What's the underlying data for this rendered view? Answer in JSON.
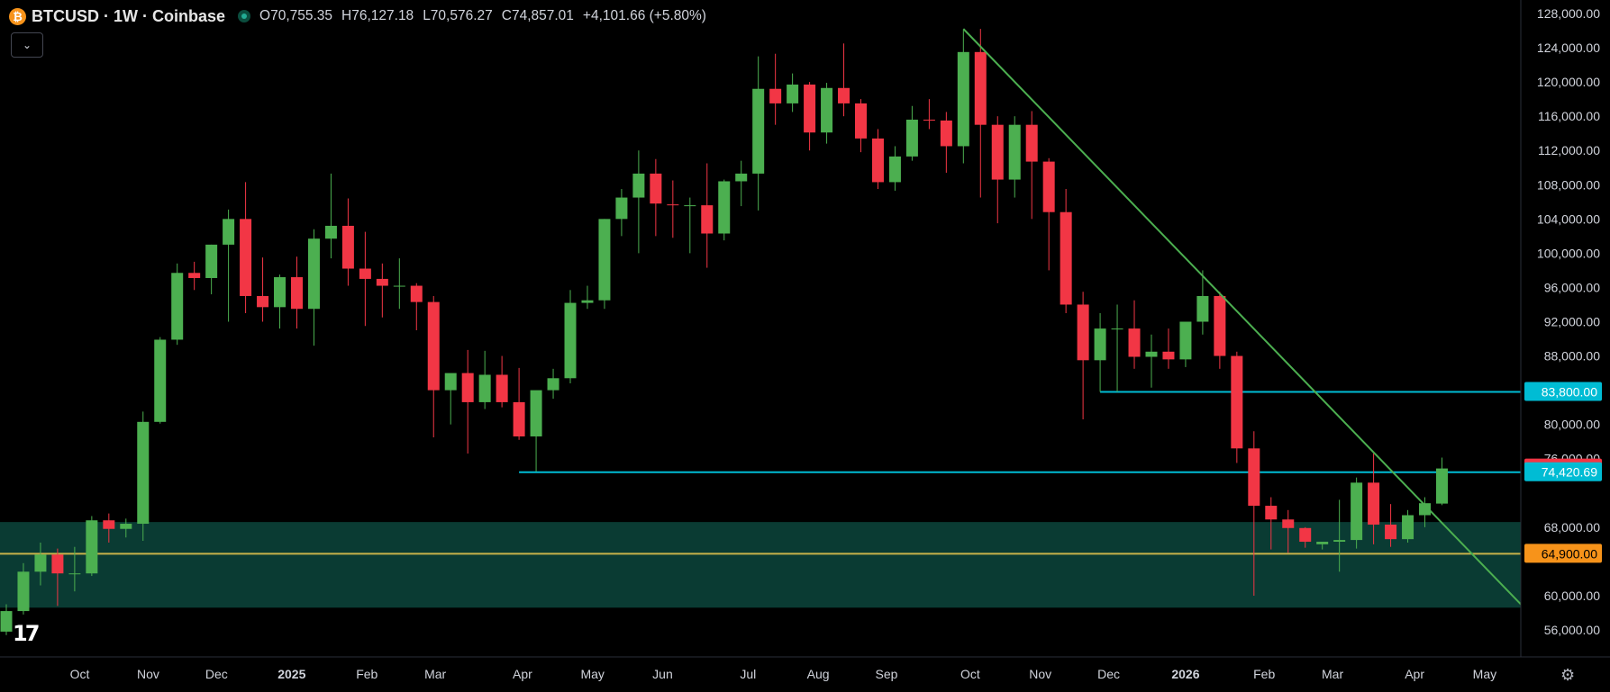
{
  "header": {
    "logo_glyph": "₿",
    "title": "BTCUSD · 1W · Coinbase",
    "open": "O70,755.35",
    "high": "H76,127.18",
    "low": "L70,576.27",
    "close": "C74,857.01",
    "change": "+4,101.66 (+5.80%)",
    "collapse_icon": "chevron-down-icon"
  },
  "colors": {
    "up": "#4caf50",
    "down": "#f23645",
    "cyan_line": "#00bcd4",
    "gold_line": "#c9b24a",
    "zone": "#0a3b33",
    "trendline": "#4caf50",
    "background": "#000000"
  },
  "chart_data": {
    "type": "candlestick",
    "symbol": "BTCUSD",
    "interval": "1W",
    "exchange": "Coinbase",
    "ylim": [
      53000,
      129000
    ],
    "y_ticks": [
      56000,
      60000,
      64000,
      68000,
      72000,
      76000,
      80000,
      84000,
      88000,
      92000,
      96000,
      100000,
      104000,
      108000,
      112000,
      116000,
      120000,
      124000,
      128000
    ],
    "y_tick_labels": [
      "56,000.00",
      "60,000.00",
      "",
      "68,000.00",
      "",
      "76,000.00",
      "80,000.00",
      "",
      "88,000.00",
      "92,000.00",
      "96,000.00",
      "100,000.00",
      "104,000.00",
      "108,000.00",
      "112,000.00",
      "116,000.00",
      "120,000.00",
      "124,000.00",
      "128,000.00"
    ],
    "x_labels": [
      {
        "label": "Oct",
        "index": 4.3
      },
      {
        "label": "Nov",
        "index": 8.3
      },
      {
        "label": "Dec",
        "index": 12.3
      },
      {
        "label": "2025",
        "index": 16.7
      },
      {
        "label": "Feb",
        "index": 21.1
      },
      {
        "label": "Mar",
        "index": 25.1
      },
      {
        "label": "Apr",
        "index": 30.2
      },
      {
        "label": "May",
        "index": 34.3
      },
      {
        "label": "Jun",
        "index": 38.4
      },
      {
        "label": "Jul",
        "index": 43.4
      },
      {
        "label": "Aug",
        "index": 47.5
      },
      {
        "label": "Sep",
        "index": 51.5
      },
      {
        "label": "Oct",
        "index": 56.4
      },
      {
        "label": "Nov",
        "index": 60.5
      },
      {
        "label": "Dec",
        "index": 64.5
      },
      {
        "label": "2026",
        "index": 69.0
      },
      {
        "label": "Feb",
        "index": 73.6
      },
      {
        "label": "Mar",
        "index": 77.6
      },
      {
        "label": "Apr",
        "index": 82.4
      },
      {
        "label": "May",
        "index": 86.5
      }
    ],
    "candles": [
      [
        55800,
        59000,
        55400,
        58200
      ],
      [
        58200,
        63800,
        57800,
        62800
      ],
      [
        62800,
        66200,
        61200,
        64800
      ],
      [
        64800,
        65500,
        58800,
        62600
      ],
      [
        62600,
        65700,
        60500,
        62600
      ],
      [
        62600,
        69300,
        62300,
        68800
      ],
      [
        68800,
        69600,
        66200,
        67800
      ],
      [
        67800,
        69000,
        66800,
        68400
      ],
      [
        68400,
        81500,
        66400,
        80300
      ],
      [
        80300,
        90200,
        80100,
        89900
      ],
      [
        89900,
        98800,
        89300,
        97700
      ],
      [
        97700,
        99000,
        95700,
        97100
      ],
      [
        97100,
        101000,
        95200,
        101000
      ],
      [
        101000,
        105100,
        92000,
        104000
      ],
      [
        104000,
        108300,
        93000,
        95000
      ],
      [
        95000,
        99500,
        92000,
        93700
      ],
      [
        93700,
        97500,
        91200,
        97200
      ],
      [
        97200,
        99600,
        91200,
        93500
      ],
      [
        93500,
        102800,
        89200,
        101700
      ],
      [
        101700,
        109300,
        99400,
        103200
      ],
      [
        103200,
        106400,
        96200,
        98200
      ],
      [
        98200,
        102500,
        91500,
        97000
      ],
      [
        97000,
        98800,
        92500,
        96200
      ],
      [
        96200,
        99400,
        93500,
        96200
      ],
      [
        96200,
        96500,
        91000,
        94300
      ],
      [
        94300,
        95000,
        78500,
        84000
      ],
      [
        84000,
        85800,
        80000,
        86000
      ],
      [
        86000,
        88700,
        76600,
        82600
      ],
      [
        82600,
        88600,
        81800,
        85800
      ],
      [
        85800,
        88000,
        82000,
        82600
      ],
      [
        82600,
        86600,
        78200,
        78600
      ],
      [
        78600,
        83600,
        74500,
        84000
      ],
      [
        84000,
        86500,
        83000,
        85400
      ],
      [
        85400,
        95700,
        84800,
        94200
      ],
      [
        94200,
        96200,
        93500,
        94500
      ],
      [
        94500,
        104000,
        93500,
        104000
      ],
      [
        104000,
        107500,
        102000,
        106500
      ],
      [
        106500,
        112000,
        100000,
        109300
      ],
      [
        109300,
        111000,
        102000,
        105800
      ],
      [
        105700,
        108500,
        101800,
        105600
      ],
      [
        105600,
        106500,
        100000,
        105600
      ],
      [
        105600,
        110500,
        98300,
        102300
      ],
      [
        102300,
        108600,
        101500,
        108400
      ],
      [
        108400,
        110800,
        105500,
        109300
      ],
      [
        109300,
        123000,
        105000,
        119200
      ],
      [
        119200,
        123300,
        115000,
        117500
      ],
      [
        117500,
        121000,
        116500,
        119700
      ],
      [
        119700,
        120000,
        112000,
        114100
      ],
      [
        114100,
        119900,
        112800,
        119300
      ],
      [
        119300,
        124500,
        116000,
        117500
      ],
      [
        117500,
        118000,
        111800,
        113400
      ],
      [
        113400,
        114500,
        107500,
        108300
      ],
      [
        108300,
        112500,
        107300,
        111300
      ],
      [
        111300,
        117200,
        110800,
        115600
      ],
      [
        115600,
        118000,
        114500,
        115500
      ],
      [
        115500,
        116500,
        109400,
        112500
      ],
      [
        112500,
        126100,
        110500,
        123500
      ],
      [
        123500,
        126200,
        106500,
        115000
      ],
      [
        115000,
        116000,
        103500,
        108600
      ],
      [
        108600,
        116000,
        106500,
        115000
      ],
      [
        115000,
        116600,
        104000,
        110700
      ],
      [
        110700,
        111100,
        98000,
        104800
      ],
      [
        104800,
        107500,
        93000,
        94000
      ],
      [
        94000,
        95500,
        80600,
        87500
      ],
      [
        87500,
        93000,
        83800,
        91200
      ],
      [
        91200,
        94000,
        83800,
        91200
      ],
      [
        91200,
        94500,
        86500,
        87900
      ],
      [
        87900,
        90500,
        84300,
        88500
      ],
      [
        88500,
        91200,
        86500,
        87600
      ],
      [
        87600,
        92000,
        86700,
        92000
      ],
      [
        92000,
        98000,
        90500,
        95000
      ],
      [
        95000,
        95500,
        86500,
        88000
      ],
      [
        88000,
        88500,
        75500,
        77200
      ],
      [
        77200,
        79200,
        60000,
        70500
      ],
      [
        70500,
        71500,
        65400,
        68900
      ],
      [
        68900,
        70000,
        65000,
        67900
      ],
      [
        67900,
        68000,
        65600,
        66300
      ],
      [
        66000,
        66200,
        65400,
        66300
      ],
      [
        66300,
        71200,
        62800,
        66500
      ],
      [
        66500,
        73800,
        65500,
        73200
      ],
      [
        73200,
        76600,
        66000,
        68300
      ],
      [
        68300,
        70700,
        65700,
        66600
      ],
      [
        66600,
        70000,
        66200,
        69400
      ],
      [
        69400,
        71500,
        68000,
        70800
      ],
      [
        70755.35,
        76127.18,
        70576.27,
        74857.01
      ]
    ],
    "price_labels": [
      {
        "value": 83800,
        "text": "83,800.00",
        "color": "#00bcd4"
      },
      {
        "value": 74857.01,
        "text": "74,857.01",
        "color": "#f23645"
      },
      {
        "value": 74420.69,
        "text": "74,420.69",
        "color": "#00bcd4"
      },
      {
        "value": 64900,
        "text": "64,900.00",
        "color": "#f7931a"
      }
    ],
    "horizontal_lines": [
      {
        "value": 83800,
        "from_index": 64,
        "color": "#00bcd4"
      },
      {
        "value": 74420.69,
        "from_index": 30,
        "color": "#00bcd4"
      },
      {
        "value": 64900,
        "from_index": -1,
        "color": "#c9b24a"
      }
    ],
    "zone": {
      "from": 58600,
      "to": 68600,
      "color": "#0a3b33"
    },
    "trendline": {
      "from": [
        56.0,
        126200
      ],
      "to": [
        89.0,
        58200
      ],
      "color": "#4caf50"
    }
  }
}
